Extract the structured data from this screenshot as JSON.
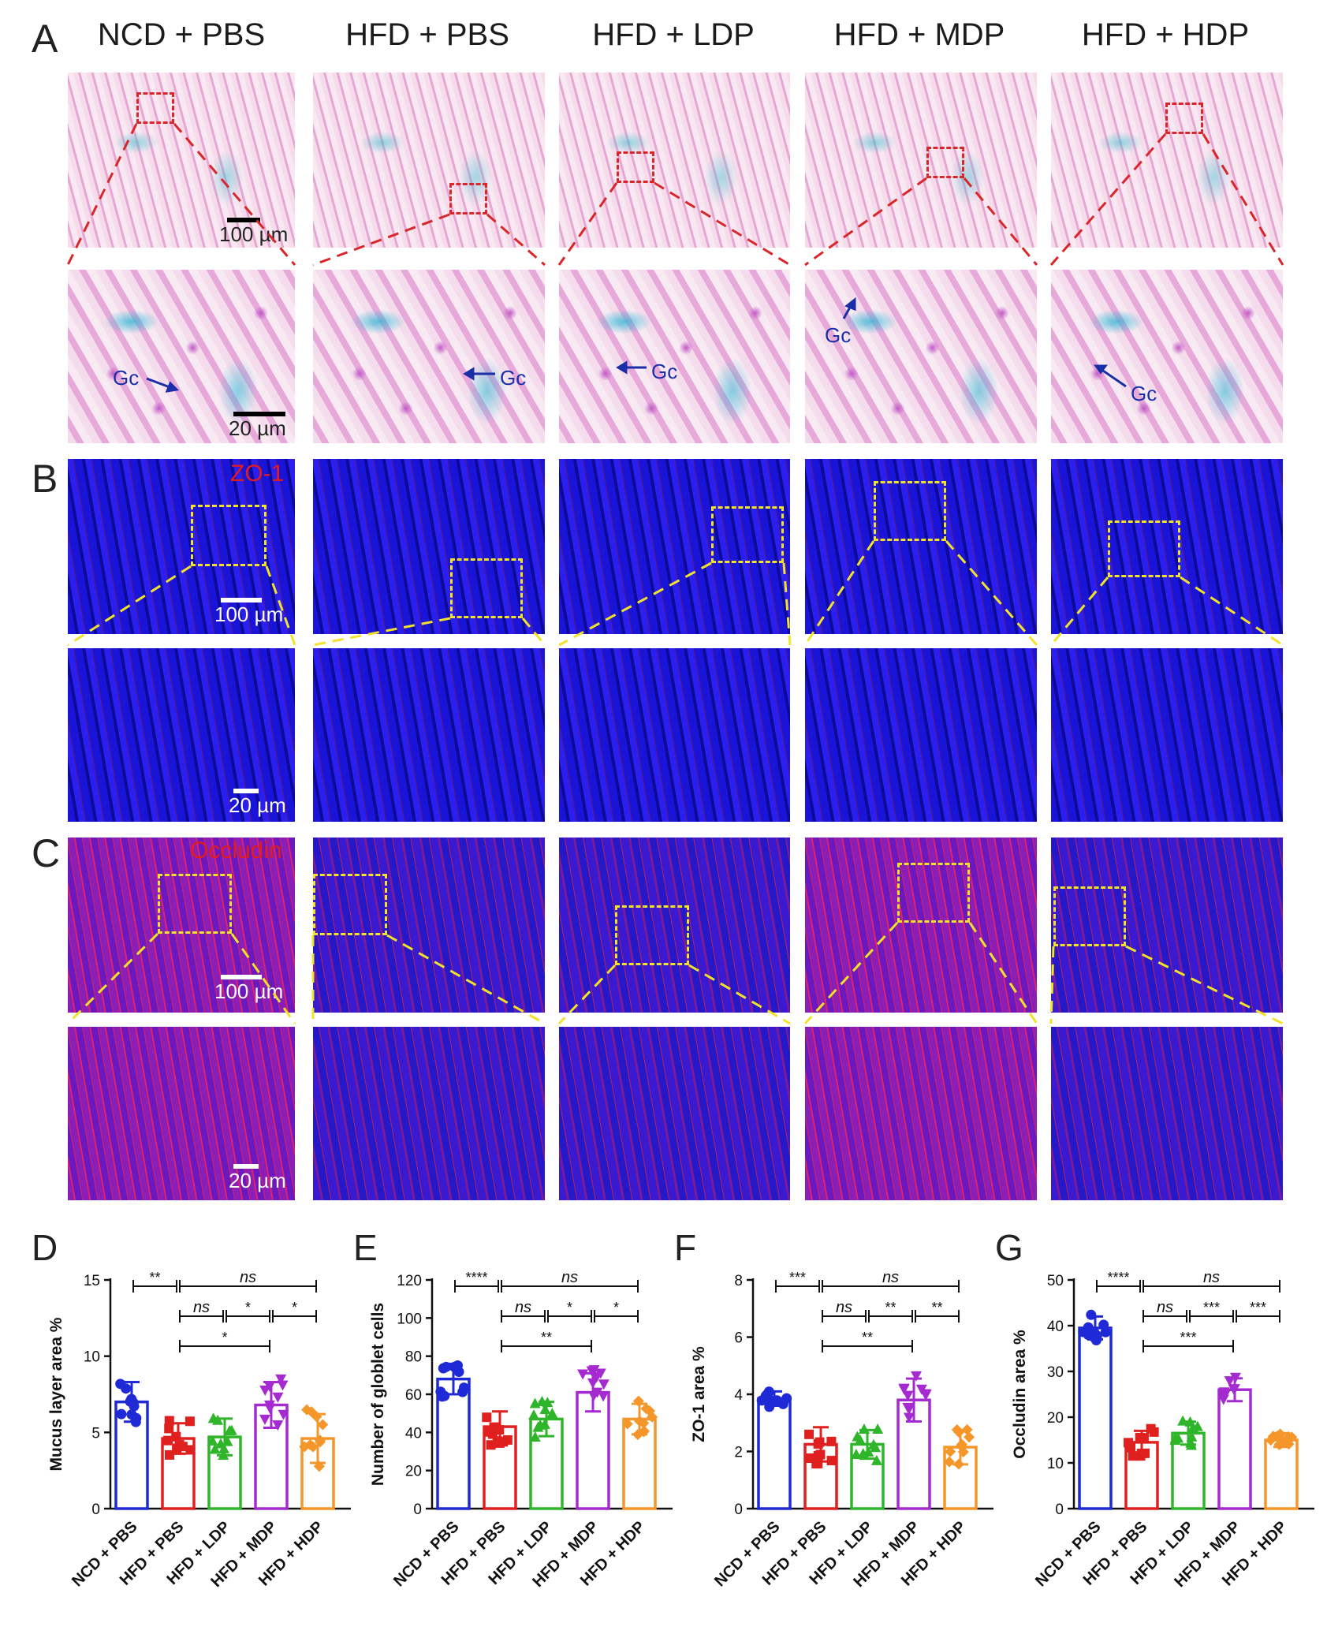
{
  "figure": {
    "panels": {
      "A": "A",
      "B": "B",
      "C": "C",
      "D": "D",
      "E": "E",
      "F": "F",
      "G": "G"
    },
    "groups": [
      "NCD + PBS",
      "HFD + PBS",
      "HFD + LDP",
      "HFD + MDP",
      "HFD + HDP"
    ],
    "labels": {
      "scale_100": "100 µm",
      "scale_20": "20 µm",
      "gc": "Gc",
      "zo1": "ZO-1",
      "occludin": "Occludin"
    },
    "colors": {
      "NCD + PBS": "#1f2ad6",
      "HFD + PBS": "#e0201f",
      "HFD + LDP": "#2fb52a",
      "HFD + MDP": "#a52ad0",
      "HFD + HDP": "#f5962a"
    }
  },
  "chart_data": [
    {
      "panel": "D",
      "type": "bar",
      "ylabel": "Mucus layer area %",
      "ylim": [
        0,
        15
      ],
      "yticks": [
        "0",
        "5",
        "10",
        "15"
      ],
      "categories": [
        "NCD + PBS",
        "HFD + PBS",
        "HFD + LDP",
        "HFD + MDP",
        "HFD + HDP"
      ],
      "values": [
        7.0,
        4.6,
        4.7,
        6.8,
        4.6
      ],
      "errors": [
        1.3,
        1.0,
        1.2,
        1.5,
        1.6
      ],
      "significance": [
        {
          "from": 0,
          "to": 1,
          "label": "**"
        },
        {
          "from": 1,
          "to": 4,
          "label": "ns"
        },
        {
          "from": 1,
          "to": 2,
          "label": "ns"
        },
        {
          "from": 2,
          "to": 3,
          "label": "*"
        },
        {
          "from": 3,
          "to": 4,
          "label": "*"
        },
        {
          "from": 1,
          "to": 3,
          "label": "*"
        }
      ]
    },
    {
      "panel": "E",
      "type": "bar",
      "ylabel": "Number of globlet cells",
      "ylim": [
        0,
        120
      ],
      "yticks": [
        "0",
        "20",
        "40",
        "60",
        "80",
        "100",
        "120"
      ],
      "categories": [
        "NCD + PBS",
        "HFD + PBS",
        "HFD + LDP",
        "HFD + MDP",
        "HFD + HDP"
      ],
      "values": [
        68,
        43,
        47,
        61,
        47
      ],
      "errors": [
        8,
        8,
        9,
        10,
        8
      ],
      "significance": [
        {
          "from": 0,
          "to": 1,
          "label": "****"
        },
        {
          "from": 1,
          "to": 4,
          "label": "ns"
        },
        {
          "from": 1,
          "to": 2,
          "label": "ns"
        },
        {
          "from": 2,
          "to": 3,
          "label": "*"
        },
        {
          "from": 3,
          "to": 4,
          "label": "*"
        },
        {
          "from": 1,
          "to": 3,
          "label": "**"
        }
      ]
    },
    {
      "panel": "F",
      "type": "bar",
      "ylabel": "ZO-1 area %",
      "ylim": [
        0,
        8
      ],
      "yticks": [
        "0",
        "2",
        "4",
        "6",
        "8"
      ],
      "categories": [
        "NCD + PBS",
        "HFD + PBS",
        "HFD + LDP",
        "HFD + MDP",
        "HFD + HDP"
      ],
      "values": [
        3.85,
        2.25,
        2.25,
        3.8,
        2.15
      ],
      "errors": [
        0.25,
        0.6,
        0.5,
        0.75,
        0.6
      ],
      "significance": [
        {
          "from": 0,
          "to": 1,
          "label": "***"
        },
        {
          "from": 1,
          "to": 4,
          "label": "ns"
        },
        {
          "from": 1,
          "to": 2,
          "label": "ns"
        },
        {
          "from": 2,
          "to": 3,
          "label": "**"
        },
        {
          "from": 3,
          "to": 4,
          "label": "**"
        },
        {
          "from": 1,
          "to": 3,
          "label": "**"
        }
      ]
    },
    {
      "panel": "G",
      "type": "bar",
      "ylabel": "Occludin area %",
      "ylim": [
        0,
        50
      ],
      "yticks": [
        "0",
        "10",
        "20",
        "30",
        "40",
        "50"
      ],
      "categories": [
        "NCD + PBS",
        "HFD + PBS",
        "HFD + LDP",
        "HFD + MDP",
        "HFD + HDP"
      ],
      "values": [
        39.5,
        14.5,
        16.5,
        26,
        15
      ],
      "errors": [
        2.5,
        2.5,
        2.5,
        2.5,
        1.5
      ],
      "significance": [
        {
          "from": 0,
          "to": 1,
          "label": "****"
        },
        {
          "from": 1,
          "to": 4,
          "label": "ns"
        },
        {
          "from": 1,
          "to": 2,
          "label": "ns"
        },
        {
          "from": 2,
          "to": 3,
          "label": "***"
        },
        {
          "from": 3,
          "to": 4,
          "label": "***"
        },
        {
          "from": 1,
          "to": 3,
          "label": "***"
        }
      ]
    }
  ]
}
